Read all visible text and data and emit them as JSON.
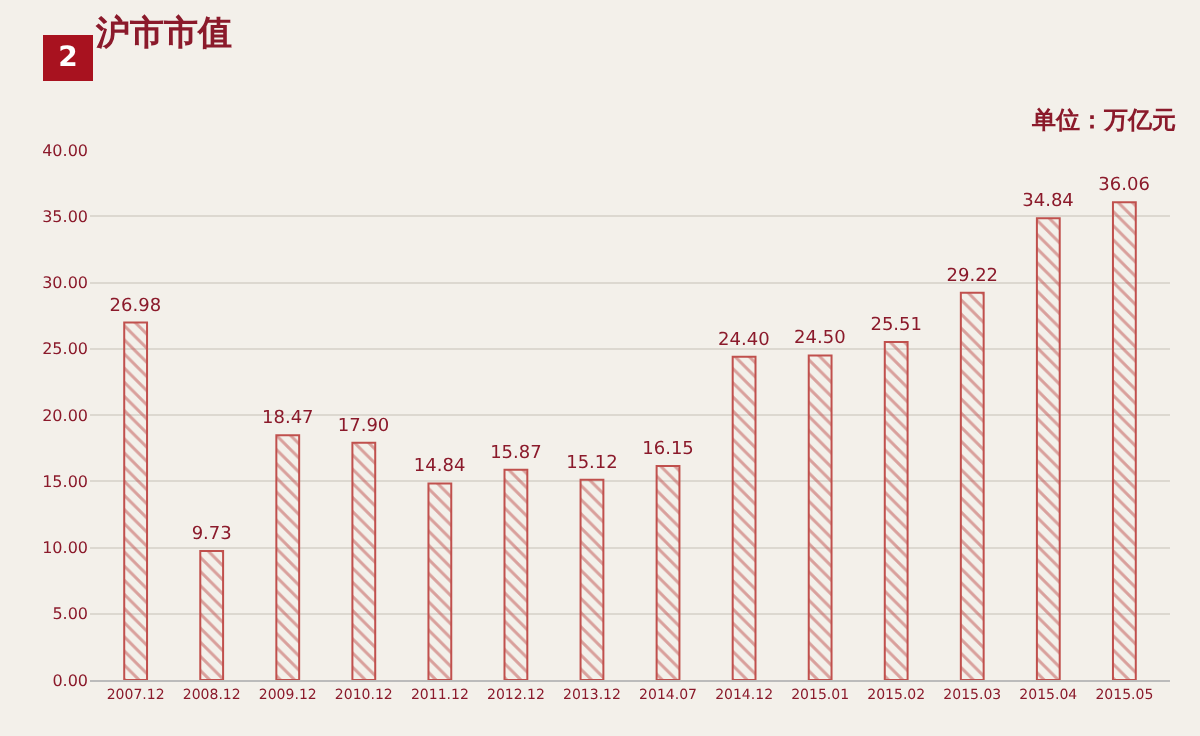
{
  "chart_data": {
    "type": "bar",
    "title": "沪市市值",
    "annotations": [
      "2",
      "单位：万亿元"
    ],
    "categories": [
      "2007.12",
      "2008.12",
      "2009.12",
      "2010.12",
      "2011.12",
      "2012.12",
      "2013.12",
      "2014.07",
      "2014.12",
      "2015.01",
      "2015.02",
      "2015.03",
      "2015.04",
      "2015.05"
    ],
    "values": [
      26.98,
      9.73,
      18.47,
      17.9,
      14.84,
      15.87,
      15.12,
      16.15,
      24.4,
      24.5,
      25.51,
      29.22,
      34.84,
      36.06
    ],
    "value_labels": [
      "26.98",
      "9.73",
      "18.47",
      "17.90",
      "14.84",
      "15.87",
      "15.12",
      "16.15",
      "24.40",
      "24.50",
      "25.51",
      "29.22",
      "34.84",
      "36.06"
    ],
    "color": "#c0504d",
    "ylim": [
      0,
      40
    ],
    "yticks": [
      {
        "value": 0,
        "label": "0.00"
      },
      {
        "value": 5,
        "label": "5.00"
      },
      {
        "value": 10,
        "label": "10.00"
      },
      {
        "value": 15,
        "label": "15.00"
      },
      {
        "value": 20,
        "label": "20.00"
      },
      {
        "value": 25,
        "label": "25.00"
      },
      {
        "value": 30,
        "label": "30.00"
      },
      {
        "value": 35,
        "label": "35.00"
      },
      {
        "value": 40,
        "label": "40.00"
      }
    ],
    "grid": "y",
    "legend": false
  }
}
